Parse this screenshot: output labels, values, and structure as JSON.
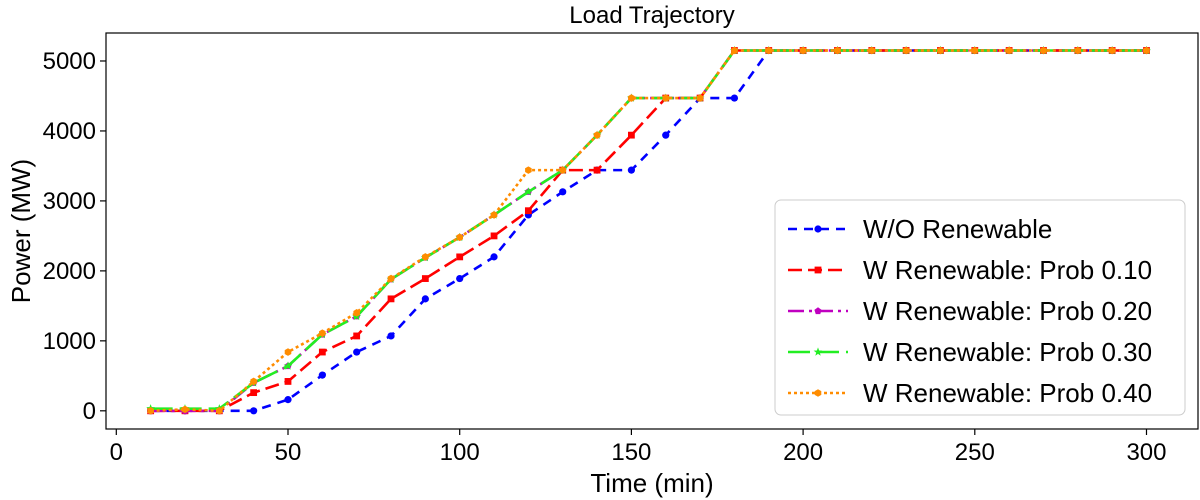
{
  "chart_data": {
    "type": "line",
    "title": "Load Trajectory",
    "xlabel": "Time (min)",
    "ylabel": "Power (MW)",
    "xlim": [
      -3,
      315
    ],
    "ylim": [
      -260,
      5400
    ],
    "xticks": [
      0,
      50,
      100,
      150,
      200,
      250,
      300
    ],
    "yticks": [
      0,
      1000,
      2000,
      3000,
      4000,
      5000
    ],
    "grid": false,
    "legend_position": "lower-right",
    "x": [
      10,
      20,
      30,
      40,
      50,
      60,
      70,
      80,
      90,
      100,
      110,
      120,
      130,
      140,
      150,
      160,
      170,
      180,
      190,
      200,
      210,
      220,
      230,
      240,
      250,
      260,
      270,
      280,
      290,
      300
    ],
    "series": [
      {
        "name": "W/O Renewable",
        "color": "#0000ff",
        "dash": "9,7",
        "marker": "circle",
        "values": [
          0,
          0,
          0,
          0,
          160,
          510,
          840,
          1070,
          1600,
          1890,
          2200,
          2800,
          3130,
          3440,
          3440,
          3940,
          4470,
          4470,
          5150,
          5150,
          5150,
          5150,
          5150,
          5150,
          5150,
          5150,
          5150,
          5150,
          5150,
          5150
        ]
      },
      {
        "name": "W Renewable: Prob 0.10",
        "color": "#ff0000",
        "dash": "14,6",
        "marker": "square",
        "values": [
          0,
          0,
          0,
          260,
          420,
          840,
          1070,
          1600,
          1890,
          2200,
          2500,
          2860,
          3440,
          3440,
          3940,
          4470,
          4470,
          5150,
          5150,
          5150,
          5150,
          5150,
          5150,
          5150,
          5150,
          5150,
          5150,
          5150,
          5150,
          5150
        ]
      },
      {
        "name": "W Renewable: Prob 0.20",
        "color": "#c000c0",
        "dash": "16,5,3,5",
        "marker": "pentagon",
        "values": [
          0,
          0,
          0,
          400,
          640,
          1090,
          1350,
          1880,
          2190,
          2480,
          2800,
          3130,
          3440,
          3940,
          4470,
          4470,
          4470,
          5150,
          5150,
          5150,
          5150,
          5150,
          5150,
          5150,
          5150,
          5150,
          5150,
          5150,
          5150,
          5150
        ]
      },
      {
        "name": "W Renewable: Prob 0.30",
        "color": "#22ee22",
        "dash": "22,7",
        "marker": "star",
        "values": [
          30,
          30,
          30,
          400,
          640,
          1090,
          1350,
          1880,
          2190,
          2480,
          2800,
          3130,
          3440,
          3940,
          4470,
          4470,
          4470,
          5150,
          5150,
          5150,
          5150,
          5150,
          5150,
          5150,
          5150,
          5150,
          5150,
          5150,
          5150,
          5150
        ]
      },
      {
        "name": "W Renewable: Prob 0.40",
        "color": "#ff8c00",
        "dash": "3,3",
        "marker": "hexagon",
        "values": [
          0,
          20,
          0,
          420,
          840,
          1110,
          1400,
          1890,
          2200,
          2480,
          2800,
          3440,
          3440,
          3940,
          4470,
          4470,
          4470,
          5150,
          5150,
          5150,
          5150,
          5150,
          5150,
          5150,
          5150,
          5150,
          5150,
          5150,
          5150,
          5150
        ]
      }
    ]
  }
}
